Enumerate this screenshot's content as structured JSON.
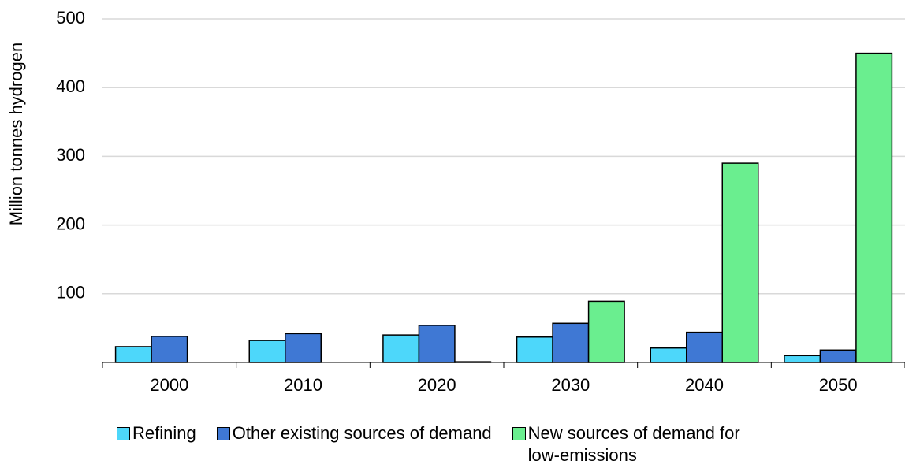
{
  "chart_data": {
    "type": "bar",
    "y_label": "Million tonnes hydrogen",
    "categories": [
      "2000",
      "2010",
      "2020",
      "2030",
      "2040",
      "2050"
    ],
    "series": [
      {
        "name": "Refining",
        "color": "#4dd7fa",
        "values": [
          23,
          32,
          40,
          37,
          21,
          10
        ]
      },
      {
        "name": "Other existing sources of demand",
        "color": "#3f78d4",
        "values": [
          38,
          42,
          54,
          57,
          44,
          18
        ]
      },
      {
        "name": "New sources of demand for low-emissions",
        "color": "#6aee8f",
        "values": [
          null,
          null,
          1,
          89,
          290,
          450
        ]
      }
    ],
    "ylim": [
      0,
      500
    ],
    "yticks": [
      100,
      200,
      300,
      400,
      500
    ],
    "grid": true
  }
}
